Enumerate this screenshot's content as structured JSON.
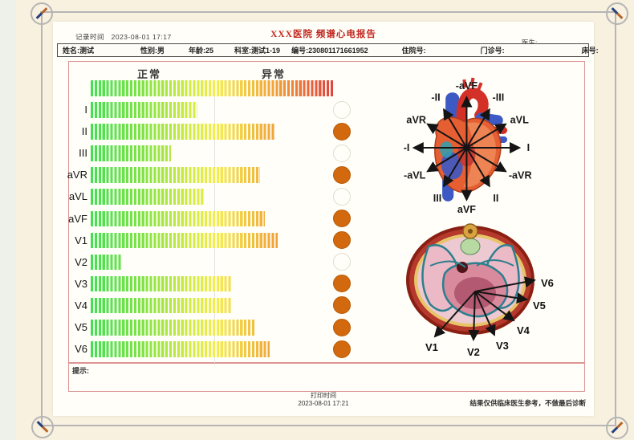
{
  "report": {
    "title": "XXX医院  频谱心电报告",
    "record_time_label": "记录时间",
    "record_time": "2023-08-01 17:17",
    "doctor_label": "医生:",
    "hint_label": "提示:",
    "print_time_label": "打印时间",
    "print_time": "2023-08-01 17:21",
    "disclaimer": "结果仅供临床医生参考，不做最后诊断"
  },
  "patient": {
    "name_label": "姓名:",
    "name": "测试",
    "gender_label": "性别:",
    "gender": "男",
    "age_label": "年龄:",
    "age": "25",
    "department_label": "科室:",
    "department": "测试1-19",
    "number_label": "编号:",
    "number": "230801171661952",
    "inpatient_label": "住院号:",
    "outpatient_label": "门诊号:",
    "bed_label": "床号:"
  },
  "chart_data": {
    "type": "bar",
    "orientation": "horizontal",
    "normal_label": "正常",
    "abnormal_label": "异常",
    "categories": [
      "I",
      "II",
      "III",
      "aVR",
      "aVL",
      "aVF",
      "V1",
      "V2",
      "V3",
      "V4",
      "V5",
      "V6"
    ],
    "values_percent": [
      44,
      76,
      33,
      70,
      47,
      72,
      77,
      13,
      58,
      58,
      68,
      74
    ],
    "abnormal": [
      false,
      true,
      false,
      true,
      false,
      true,
      true,
      false,
      true,
      true,
      true,
      true
    ],
    "threshold_percent": 51,
    "scale_gradient": [
      "#42e14e",
      "#f4ee4e",
      "#ee9434",
      "#e0463c"
    ],
    "marker_color_abnormal": "#d2690e",
    "marker_color_normal": "#fffef9"
  },
  "heart_axis_diagram": {
    "labels": [
      "-aVF",
      "-II",
      "-III",
      "aVR",
      "aVL",
      "-I",
      "I",
      "-aVL",
      "-aVR",
      "III",
      "aVF",
      "II"
    ]
  },
  "chest_lead_diagram": {
    "labels": [
      "V1",
      "V2",
      "V3",
      "V4",
      "V5",
      "V6"
    ]
  }
}
